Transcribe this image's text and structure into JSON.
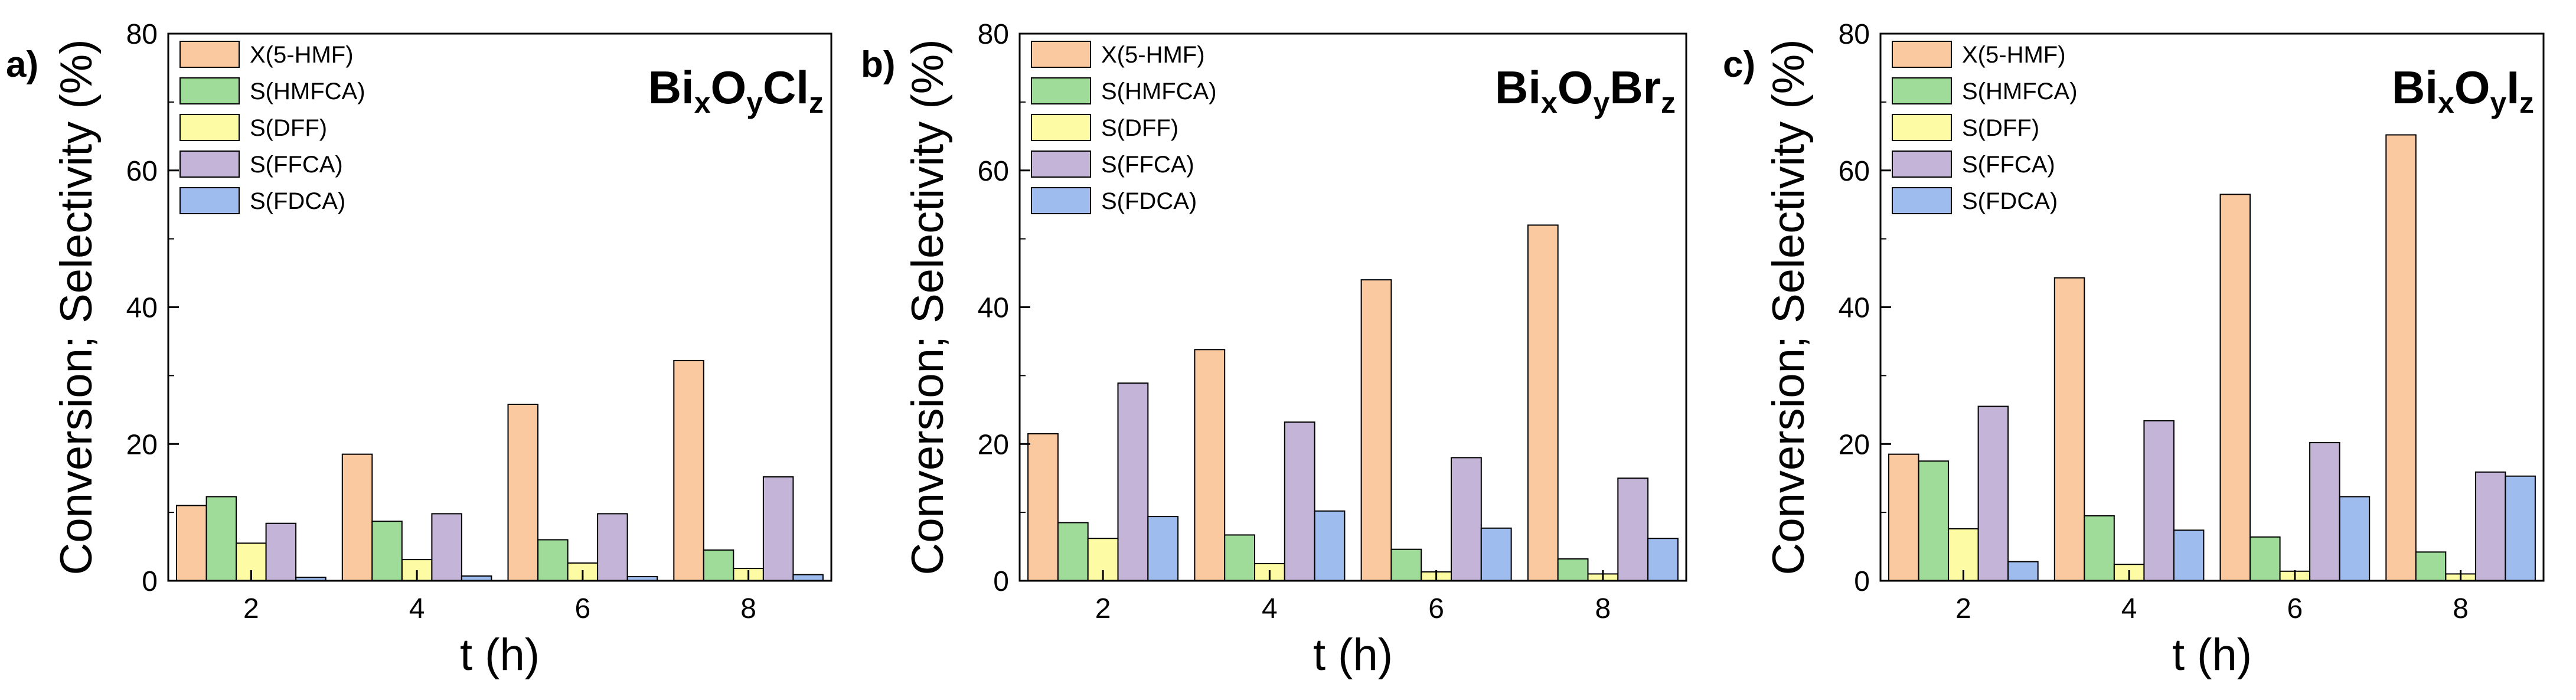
{
  "figure": {
    "panels": [
      "a)",
      "b)",
      "c)"
    ]
  },
  "chart_data": [
    {
      "type": "bar",
      "panel_label": "a)",
      "title_parts": [
        [
          "Bi",
          "x"
        ],
        [
          "O",
          "y"
        ],
        [
          "Cl",
          "z"
        ]
      ],
      "xlabel": "t (h)",
      "ylabel": "Conversion; Selectivity (%)",
      "categories": [
        "2",
        "4",
        "6",
        "8"
      ],
      "ylim": [
        0,
        80
      ],
      "yticks": [
        0,
        20,
        40,
        60,
        80
      ],
      "legend_position": "top-left",
      "series": [
        {
          "name": "X(5-HMF)",
          "color": "#fac99f",
          "values": [
            11.0,
            18.5,
            25.8,
            32.2
          ]
        },
        {
          "name": "S(HMFCA)",
          "color": "#9fdc9a",
          "values": [
            12.3,
            8.7,
            6.0,
            4.5
          ]
        },
        {
          "name": "S(DFF)",
          "color": "#fdfba3",
          "values": [
            5.5,
            3.1,
            2.6,
            1.8
          ]
        },
        {
          "name": "S(FFCA)",
          "color": "#c3b4d8",
          "values": [
            8.4,
            9.8,
            9.8,
            15.2
          ]
        },
        {
          "name": "S(FDCA)",
          "color": "#9fbcee",
          "values": [
            0.5,
            0.7,
            0.6,
            0.9
          ]
        }
      ]
    },
    {
      "type": "bar",
      "panel_label": "b)",
      "title_parts": [
        [
          "Bi",
          "x"
        ],
        [
          "O",
          "y"
        ],
        [
          "Br",
          "z"
        ]
      ],
      "xlabel": "t (h)",
      "ylabel": "Conversion; Selectivity (%)",
      "categories": [
        "2",
        "4",
        "6",
        "8"
      ],
      "ylim": [
        0,
        80
      ],
      "yticks": [
        0,
        20,
        40,
        60,
        80
      ],
      "legend_position": "top-left",
      "series": [
        {
          "name": "X(5-HMF)",
          "color": "#fac99f",
          "values": [
            21.5,
            33.8,
            44.0,
            52.0
          ]
        },
        {
          "name": "S(HMFCA)",
          "color": "#9fdc9a",
          "values": [
            8.5,
            6.7,
            4.6,
            3.2
          ]
        },
        {
          "name": "S(DFF)",
          "color": "#fdfba3",
          "values": [
            6.2,
            2.5,
            1.3,
            1.0
          ]
        },
        {
          "name": "S(FFCA)",
          "color": "#c3b4d8",
          "values": [
            28.9,
            23.2,
            18.0,
            15.0
          ]
        },
        {
          "name": "S(FDCA)",
          "color": "#9fbcee",
          "values": [
            9.4,
            10.2,
            7.7,
            6.2
          ]
        }
      ]
    },
    {
      "type": "bar",
      "panel_label": "c)",
      "title_parts": [
        [
          "Bi",
          "x"
        ],
        [
          "O",
          "y"
        ],
        [
          "I",
          "z"
        ]
      ],
      "xlabel": "t (h)",
      "ylabel": "Conversion; Selectivity (%)",
      "categories": [
        "2",
        "4",
        "6",
        "8"
      ],
      "ylim": [
        0,
        80
      ],
      "yticks": [
        0,
        20,
        40,
        60,
        80
      ],
      "legend_position": "top-left",
      "series": [
        {
          "name": "X(5-HMF)",
          "color": "#fac99f",
          "values": [
            18.5,
            44.3,
            56.5,
            65.2
          ]
        },
        {
          "name": "S(HMFCA)",
          "color": "#9fdc9a",
          "values": [
            17.5,
            9.5,
            6.4,
            4.2
          ]
        },
        {
          "name": "S(DFF)",
          "color": "#fdfba3",
          "values": [
            7.6,
            2.4,
            1.4,
            1.0
          ]
        },
        {
          "name": "S(FFCA)",
          "color": "#c3b4d8",
          "values": [
            25.5,
            23.4,
            20.2,
            15.9
          ]
        },
        {
          "name": "S(FDCA)",
          "color": "#9fbcee",
          "values": [
            2.8,
            7.4,
            12.3,
            15.3
          ]
        }
      ]
    }
  ]
}
